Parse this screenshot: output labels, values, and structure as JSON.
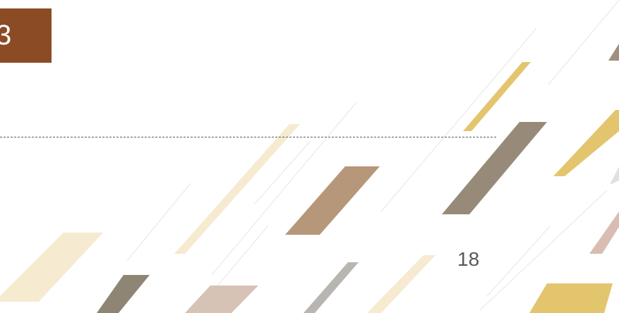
{
  "section_number": "3",
  "page_number": "18",
  "colors": {
    "section_box": "#8b4b25",
    "shape_gold": "#e3c56e",
    "shape_gray_brown": "#978a78",
    "shape_tan": "#b69779",
    "shape_cream": "#f6ead0",
    "shape_rose": "#d6c3b6",
    "shape_silver": "#b9b6b1"
  }
}
